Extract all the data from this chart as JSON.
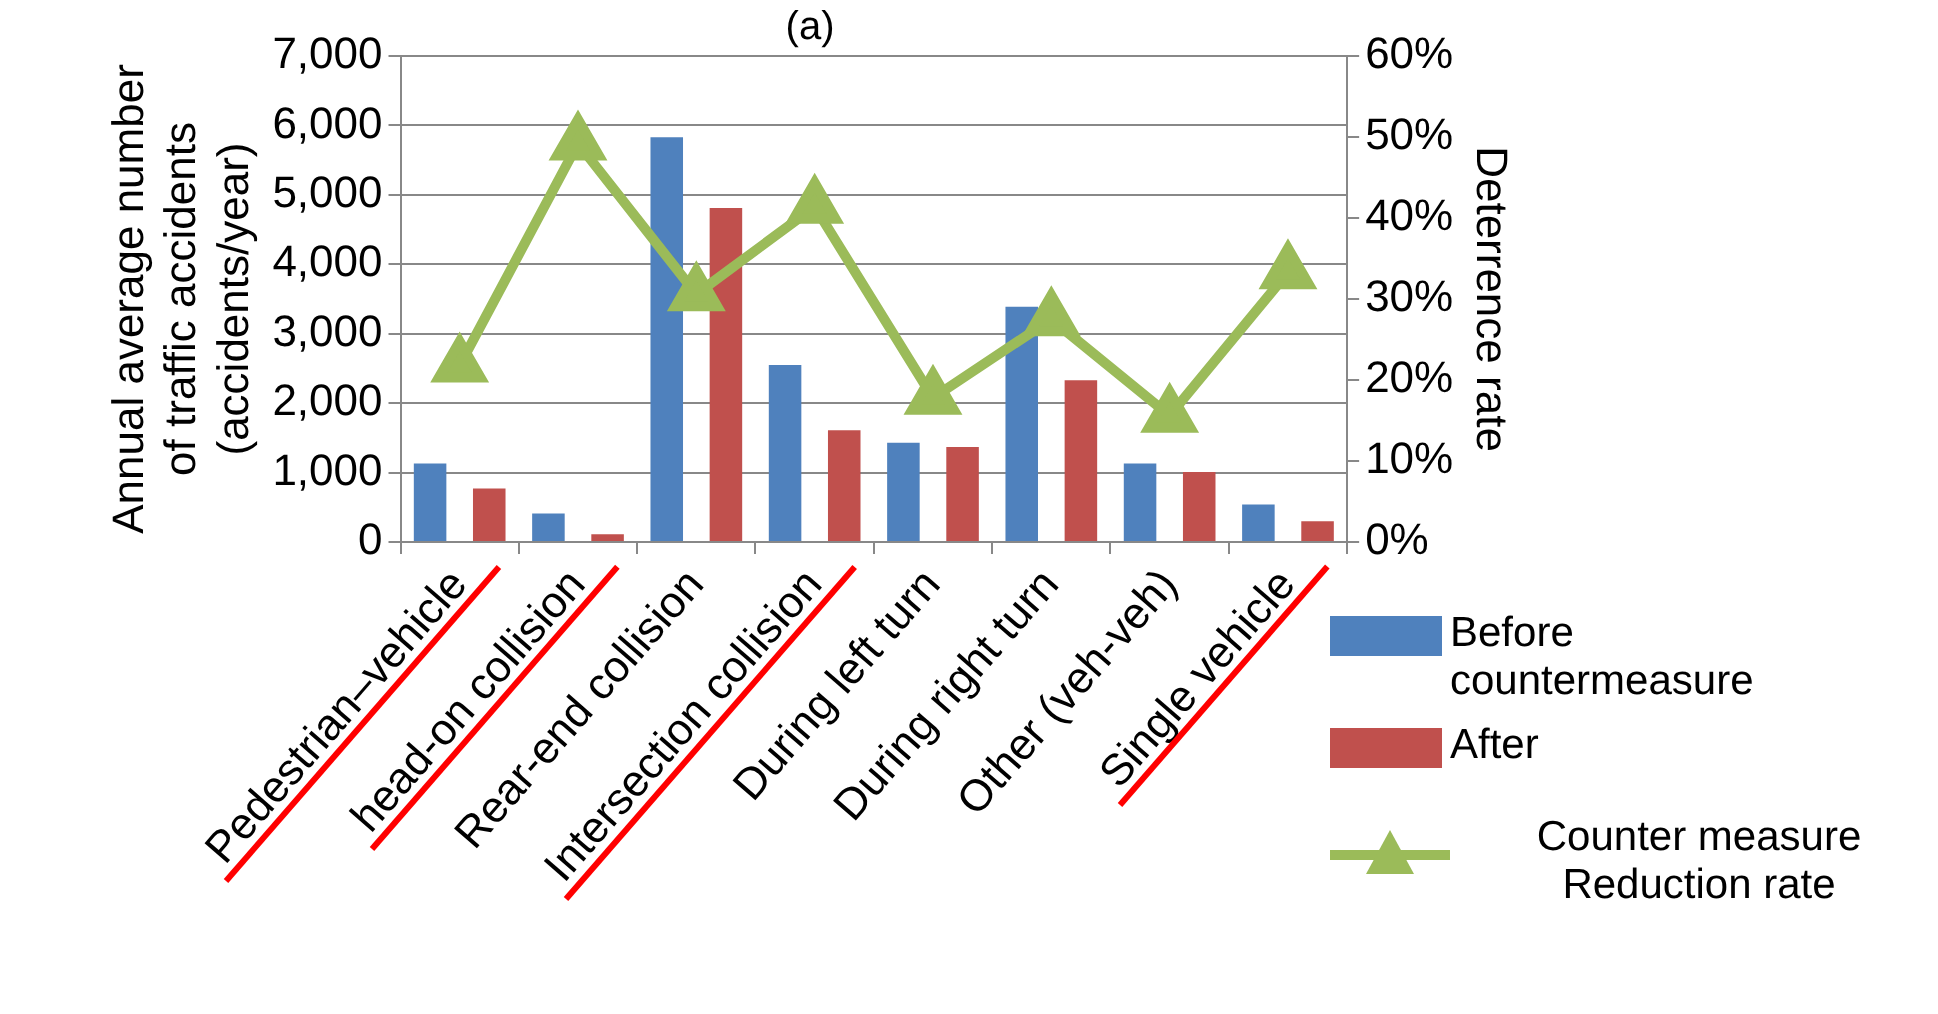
{
  "chart_data": {
    "type": "bar",
    "title": "(a)",
    "categories": [
      "Pedestrian–vehicle",
      "head-on collision",
      "Rear-end collision",
      "Intersection collision",
      "During left turn",
      "During right turn",
      "Other (veh-veh)",
      "Single vehicle"
    ],
    "series": [
      {
        "name": "Before countermeasure",
        "color": "#4f81bd",
        "values": [
          1130,
          410,
          5830,
          2550,
          1430,
          3390,
          1130,
          540
        ]
      },
      {
        "name": "After",
        "color": "#c0504d",
        "values": [
          770,
          110,
          4810,
          1610,
          1370,
          2330,
          1010,
          300
        ]
      },
      {
        "name": "Counter measure Reduction rate",
        "type": "line",
        "axis": "y2",
        "color": "#9bbb59",
        "marker": "triangle",
        "values": [
          21.8,
          49.2,
          30.6,
          41.4,
          17.8,
          27.5,
          15.6,
          33.3
        ]
      }
    ],
    "ylabel": "Annual average number of traffic accidents (accidents/year)",
    "y2label": "Deterrence rate",
    "ylim": [
      0,
      7000
    ],
    "yticks": [
      {
        "value": 0,
        "label": "0"
      },
      {
        "value": 1000,
        "label": "1,000"
      },
      {
        "value": 2000,
        "label": "2,000"
      },
      {
        "value": 3000,
        "label": "3,000"
      },
      {
        "value": 4000,
        "label": "4,000"
      },
      {
        "value": 5000,
        "label": "5,000"
      },
      {
        "value": 6000,
        "label": "6,000"
      },
      {
        "value": 7000,
        "label": "7,000"
      }
    ],
    "y2lim": [
      0,
      60
    ],
    "y2ticks": [
      {
        "value": 0,
        "label": "0%"
      },
      {
        "value": 10,
        "label": "10%"
      },
      {
        "value": 20,
        "label": "20%"
      },
      {
        "value": 30,
        "label": "30%"
      },
      {
        "value": 40,
        "label": "40%"
      },
      {
        "value": 50,
        "label": "50%"
      },
      {
        "value": 60,
        "label": "60%"
      }
    ],
    "grid": "y",
    "legend": "bottom right"
  }
}
